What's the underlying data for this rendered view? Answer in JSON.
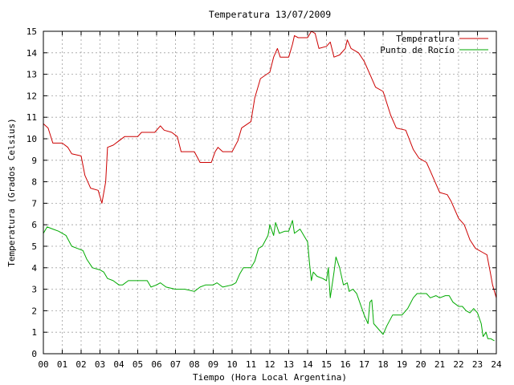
{
  "chart_data": {
    "type": "line",
    "title": "Temperatura 13/07/2009",
    "xlabel": "Tiempo (Hora Local Argentina)",
    "ylabel": "Temperatura (Grados Celsius)",
    "xlim": [
      0,
      24
    ],
    "ylim": [
      0,
      15
    ],
    "x_ticks": [
      "00",
      "01",
      "02",
      "03",
      "04",
      "05",
      "06",
      "07",
      "08",
      "09",
      "10",
      "11",
      "12",
      "13",
      "14",
      "15",
      "16",
      "17",
      "18",
      "19",
      "20",
      "21",
      "22",
      "23",
      "24"
    ],
    "y_ticks": [
      "0",
      "1",
      "2",
      "3",
      "4",
      "5",
      "6",
      "7",
      "8",
      "9",
      "10",
      "11",
      "12",
      "13",
      "14",
      "15"
    ],
    "grid": true,
    "legend_position": "top-right",
    "series": [
      {
        "name": "Temperatura",
        "color": "#cc0000",
        "points": [
          [
            0.0,
            10.7
          ],
          [
            0.25,
            10.5
          ],
          [
            0.5,
            9.8
          ],
          [
            1.0,
            9.8
          ],
          [
            1.3,
            9.6
          ],
          [
            1.5,
            9.3
          ],
          [
            2.0,
            9.2
          ],
          [
            2.2,
            8.3
          ],
          [
            2.5,
            7.7
          ],
          [
            2.9,
            7.6
          ],
          [
            3.1,
            7.0
          ],
          [
            3.3,
            8.0
          ],
          [
            3.4,
            9.6
          ],
          [
            3.7,
            9.7
          ],
          [
            4.0,
            9.9
          ],
          [
            4.3,
            10.1
          ],
          [
            5.0,
            10.1
          ],
          [
            5.2,
            10.3
          ],
          [
            5.9,
            10.3
          ],
          [
            6.2,
            10.6
          ],
          [
            6.4,
            10.4
          ],
          [
            6.8,
            10.3
          ],
          [
            7.1,
            10.1
          ],
          [
            7.3,
            9.4
          ],
          [
            8.0,
            9.4
          ],
          [
            8.3,
            8.9
          ],
          [
            8.9,
            8.9
          ],
          [
            9.1,
            9.4
          ],
          [
            9.25,
            9.6
          ],
          [
            9.5,
            9.4
          ],
          [
            10.0,
            9.4
          ],
          [
            10.3,
            9.9
          ],
          [
            10.5,
            10.5
          ],
          [
            11.0,
            10.8
          ],
          [
            11.2,
            11.9
          ],
          [
            11.5,
            12.8
          ],
          [
            12.0,
            13.1
          ],
          [
            12.2,
            13.8
          ],
          [
            12.4,
            14.2
          ],
          [
            12.55,
            13.8
          ],
          [
            13.0,
            13.8
          ],
          [
            13.2,
            14.4
          ],
          [
            13.3,
            14.8
          ],
          [
            13.5,
            14.7
          ],
          [
            14.0,
            14.7
          ],
          [
            14.2,
            15.0
          ],
          [
            14.4,
            14.9
          ],
          [
            14.6,
            14.2
          ],
          [
            15.0,
            14.3
          ],
          [
            15.2,
            14.5
          ],
          [
            15.4,
            13.8
          ],
          [
            15.7,
            13.9
          ],
          [
            16.0,
            14.2
          ],
          [
            16.1,
            14.6
          ],
          [
            16.3,
            14.2
          ],
          [
            16.7,
            14.0
          ],
          [
            17.0,
            13.6
          ],
          [
            17.3,
            13.0
          ],
          [
            17.6,
            12.4
          ],
          [
            18.0,
            12.2
          ],
          [
            18.4,
            11.1
          ],
          [
            18.7,
            10.5
          ],
          [
            19.2,
            10.4
          ],
          [
            19.6,
            9.5
          ],
          [
            19.9,
            9.1
          ],
          [
            20.3,
            8.9
          ],
          [
            20.5,
            8.5
          ],
          [
            20.8,
            7.9
          ],
          [
            21.0,
            7.5
          ],
          [
            21.4,
            7.4
          ],
          [
            21.6,
            7.1
          ],
          [
            22.0,
            6.3
          ],
          [
            22.3,
            6.0
          ],
          [
            22.6,
            5.3
          ],
          [
            22.9,
            4.9
          ],
          [
            23.3,
            4.7
          ],
          [
            23.5,
            4.6
          ],
          [
            23.7,
            3.7
          ],
          [
            23.8,
            3.2
          ],
          [
            24.0,
            2.6
          ]
        ]
      },
      {
        "name": "Punto de Rocío",
        "color": "#00aa00",
        "points": [
          [
            0.0,
            5.6
          ],
          [
            0.2,
            5.9
          ],
          [
            0.5,
            5.8
          ],
          [
            0.8,
            5.7
          ],
          [
            1.2,
            5.5
          ],
          [
            1.5,
            5.0
          ],
          [
            1.8,
            4.9
          ],
          [
            2.1,
            4.8
          ],
          [
            2.3,
            4.4
          ],
          [
            2.6,
            4.0
          ],
          [
            3.0,
            3.9
          ],
          [
            3.2,
            3.8
          ],
          [
            3.4,
            3.5
          ],
          [
            3.7,
            3.4
          ],
          [
            4.0,
            3.2
          ],
          [
            4.2,
            3.2
          ],
          [
            4.5,
            3.4
          ],
          [
            5.0,
            3.4
          ],
          [
            5.5,
            3.4
          ],
          [
            5.7,
            3.1
          ],
          [
            6.0,
            3.2
          ],
          [
            6.2,
            3.3
          ],
          [
            6.5,
            3.1
          ],
          [
            7.0,
            3.0
          ],
          [
            7.5,
            3.0
          ],
          [
            8.0,
            2.9
          ],
          [
            8.3,
            3.1
          ],
          [
            8.6,
            3.2
          ],
          [
            9.0,
            3.2
          ],
          [
            9.2,
            3.3
          ],
          [
            9.5,
            3.1
          ],
          [
            10.0,
            3.2
          ],
          [
            10.2,
            3.3
          ],
          [
            10.4,
            3.7
          ],
          [
            10.6,
            4.0
          ],
          [
            11.0,
            4.0
          ],
          [
            11.2,
            4.3
          ],
          [
            11.4,
            4.9
          ],
          [
            11.6,
            5.0
          ],
          [
            11.9,
            5.5
          ],
          [
            12.0,
            6.0
          ],
          [
            12.2,
            5.5
          ],
          [
            12.3,
            6.1
          ],
          [
            12.5,
            5.6
          ],
          [
            12.8,
            5.7
          ],
          [
            13.0,
            5.7
          ],
          [
            13.2,
            6.2
          ],
          [
            13.3,
            5.6
          ],
          [
            13.6,
            5.8
          ],
          [
            13.8,
            5.5
          ],
          [
            14.0,
            5.2
          ],
          [
            14.1,
            4.2
          ],
          [
            14.2,
            3.4
          ],
          [
            14.3,
            3.8
          ],
          [
            14.5,
            3.6
          ],
          [
            14.8,
            3.5
          ],
          [
            15.0,
            3.4
          ],
          [
            15.1,
            4.0
          ],
          [
            15.2,
            2.6
          ],
          [
            15.4,
            3.8
          ],
          [
            15.5,
            4.5
          ],
          [
            15.7,
            4.0
          ],
          [
            15.9,
            3.2
          ],
          [
            16.1,
            3.3
          ],
          [
            16.2,
            2.9
          ],
          [
            16.4,
            3.0
          ],
          [
            16.6,
            2.8
          ],
          [
            16.8,
            2.3
          ],
          [
            17.0,
            1.8
          ],
          [
            17.2,
            1.4
          ],
          [
            17.3,
            2.4
          ],
          [
            17.4,
            2.5
          ],
          [
            17.5,
            1.4
          ],
          [
            17.8,
            1.1
          ],
          [
            18.0,
            0.9
          ],
          [
            18.2,
            1.3
          ],
          [
            18.5,
            1.8
          ],
          [
            19.0,
            1.8
          ],
          [
            19.3,
            2.1
          ],
          [
            19.6,
            2.6
          ],
          [
            19.8,
            2.8
          ],
          [
            20.0,
            2.8
          ],
          [
            20.3,
            2.8
          ],
          [
            20.5,
            2.6
          ],
          [
            20.8,
            2.7
          ],
          [
            21.0,
            2.6
          ],
          [
            21.3,
            2.7
          ],
          [
            21.5,
            2.7
          ],
          [
            21.7,
            2.4
          ],
          [
            22.0,
            2.2
          ],
          [
            22.2,
            2.2
          ],
          [
            22.4,
            2.0
          ],
          [
            22.6,
            1.9
          ],
          [
            22.8,
            2.1
          ],
          [
            23.0,
            1.9
          ],
          [
            23.2,
            1.4
          ],
          [
            23.3,
            0.8
          ],
          [
            23.45,
            1.0
          ],
          [
            23.55,
            0.7
          ],
          [
            23.7,
            0.7
          ],
          [
            23.9,
            0.6
          ]
        ]
      }
    ]
  }
}
